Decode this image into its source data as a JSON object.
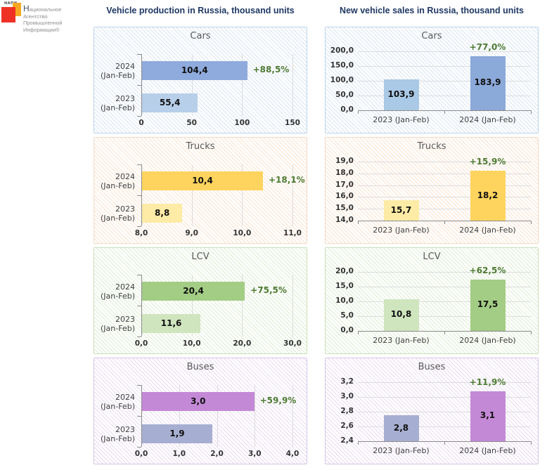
{
  "logo": {
    "acronym": "НАПИ",
    "org_lines": [
      "Национальное",
      "Агентство",
      "Промышленной",
      "Информации®"
    ],
    "colors": {
      "red": "#ee3124",
      "orange": "#f7a823"
    }
  },
  "headers": {
    "left": "Vehicle production in Russia,  thousand  units",
    "right": "New vehicle sales in Russia,  thousand  units"
  },
  "colors": {
    "header_navy": "#1f3864",
    "growth_green": "#4e7b33",
    "panel_title_grey": "#595959"
  },
  "chart_data": [
    {
      "id": "production-cars",
      "column": "production",
      "type": "bar",
      "orientation": "horizontal",
      "title": "Cars",
      "theme": "blue",
      "categories": [
        "2024 (Jan-Feb)",
        "2023 (Jan-Feb)"
      ],
      "values": [
        104.4,
        55.4
      ],
      "value_labels": [
        "104,4",
        "55,4"
      ],
      "growth_label": "+88,5%",
      "growth_on": "2024 (Jan-Feb)",
      "bar_colors": [
        "#8faadc",
        "#b7cfe9"
      ],
      "axis": {
        "min": 0,
        "max": 150,
        "tick_labels": [
          "0",
          "50",
          "100",
          "150"
        ]
      },
      "grid": true,
      "xlabel": "",
      "ylabel": ""
    },
    {
      "id": "production-trucks",
      "column": "production",
      "type": "bar",
      "orientation": "horizontal",
      "title": "Trucks",
      "theme": "orange",
      "categories": [
        "2024 (Jan-Feb)",
        "2023 (Jan-Feb)"
      ],
      "values": [
        10.4,
        8.8
      ],
      "value_labels": [
        "10,4",
        "8,8"
      ],
      "growth_label": "+18,1%",
      "growth_on": "2024 (Jan-Feb)",
      "bar_colors": [
        "#ffd45e",
        "#fdeba6"
      ],
      "axis": {
        "min": 8,
        "max": 11,
        "tick_labels": [
          "8,0",
          "9,0",
          "10,0",
          "11,0"
        ]
      },
      "grid": true,
      "xlabel": "",
      "ylabel": ""
    },
    {
      "id": "production-lcv",
      "column": "production",
      "type": "bar",
      "orientation": "horizontal",
      "title": "LCV",
      "theme": "green",
      "categories": [
        "2024 (Jan-Feb)",
        "2023 (Jan-Feb)"
      ],
      "values": [
        20.4,
        11.6
      ],
      "value_labels": [
        "20,4",
        "11,6"
      ],
      "growth_label": "+75,5%",
      "growth_on": "2024 (Jan-Feb)",
      "bar_colors": [
        "#a3cc85",
        "#cfe5be"
      ],
      "axis": {
        "min": 0,
        "max": 30,
        "tick_labels": [
          "0,0",
          "10,0",
          "20,0",
          "30,0"
        ]
      },
      "grid": true,
      "xlabel": "",
      "ylabel": ""
    },
    {
      "id": "production-buses",
      "column": "production",
      "type": "bar",
      "orientation": "horizontal",
      "title": "Buses",
      "theme": "purple",
      "categories": [
        "2024 (Jan-Feb)",
        "2023 (Jan-Feb)"
      ],
      "values": [
        3.0,
        1.9
      ],
      "plot_values": [
        2.97,
        1.86
      ],
      "value_labels": [
        "3,0",
        "1,9"
      ],
      "growth_label": "+59,9%",
      "growth_on": "2024 (Jan-Feb)",
      "bar_colors": [
        "#c489d6",
        "#a6afd1"
      ],
      "axis": {
        "min": 0,
        "max": 4,
        "tick_labels": [
          "0,0",
          "1,0",
          "2,0",
          "3,0",
          "4,0"
        ]
      },
      "grid": true,
      "xlabel": "",
      "ylabel": ""
    },
    {
      "id": "sales-cars",
      "column": "sales",
      "type": "bar",
      "orientation": "vertical",
      "title": "Cars",
      "theme": "blue",
      "categories": [
        "2023 (Jan-Feb)",
        "2024 (Jan-Feb)"
      ],
      "values": [
        103.9,
        183.9
      ],
      "value_labels": [
        "103,9",
        "183,9"
      ],
      "growth_label": "+77,0%",
      "growth_on": "2024 (Jan-Feb)",
      "bar_colors": [
        "#a9c9e6",
        "#8ba9d9"
      ],
      "axis": {
        "min": 0,
        "max": 200,
        "tick_labels": [
          "0,0",
          "50,0",
          "100,0",
          "150,0",
          "200,0"
        ]
      },
      "grid": true,
      "xlabel": "",
      "ylabel": ""
    },
    {
      "id": "sales-trucks",
      "column": "sales",
      "type": "bar",
      "orientation": "vertical",
      "title": "Trucks",
      "theme": "orange",
      "categories": [
        "2023 (Jan-Feb)",
        "2024 (Jan-Feb)"
      ],
      "values": [
        15.7,
        18.2
      ],
      "value_labels": [
        "15,7",
        "18,2"
      ],
      "growth_label": "+15,9%",
      "growth_on": "2024 (Jan-Feb)",
      "bar_colors": [
        "#fdeba6",
        "#ffd45e"
      ],
      "axis": {
        "min": 14,
        "max": 19,
        "tick_labels": [
          "14,0",
          "15,0",
          "16,0",
          "17,0",
          "18,0",
          "19,0"
        ]
      },
      "grid": true,
      "xlabel": "",
      "ylabel": ""
    },
    {
      "id": "sales-lcv",
      "column": "sales",
      "type": "bar",
      "orientation": "vertical",
      "title": "LCV",
      "theme": "green",
      "categories": [
        "2023 (Jan-Feb)",
        "2024 (Jan-Feb)"
      ],
      "values": [
        10.8,
        17.5
      ],
      "value_labels": [
        "10,8",
        "17,5"
      ],
      "growth_label": "+62,5%",
      "growth_on": "2024 (Jan-Feb)",
      "bar_colors": [
        "#cfe5be",
        "#a3cc85"
      ],
      "axis": {
        "min": 0,
        "max": 20,
        "tick_labels": [
          "0,0",
          "5,0",
          "10,0",
          "15,0",
          "20,0"
        ]
      },
      "grid": true,
      "xlabel": "",
      "ylabel": ""
    },
    {
      "id": "sales-buses",
      "column": "sales",
      "type": "bar",
      "orientation": "vertical",
      "title": "Buses",
      "theme": "purple",
      "categories": [
        "2023 (Jan-Feb)",
        "2024 (Jan-Feb)"
      ],
      "values": [
        2.8,
        3.1
      ],
      "plot_values": [
        2.75,
        3.08
      ],
      "value_labels": [
        "2,8",
        "3,1"
      ],
      "growth_label": "+11,9%",
      "growth_on": "2024 (Jan-Feb)",
      "bar_colors": [
        "#a6afd1",
        "#c489d6"
      ],
      "axis": {
        "min": 2.4,
        "max": 3.2,
        "tick_labels": [
          "2,4",
          "2,6",
          "2,8",
          "3,0",
          "3,2"
        ]
      },
      "grid": true,
      "xlabel": "",
      "ylabel": ""
    }
  ]
}
